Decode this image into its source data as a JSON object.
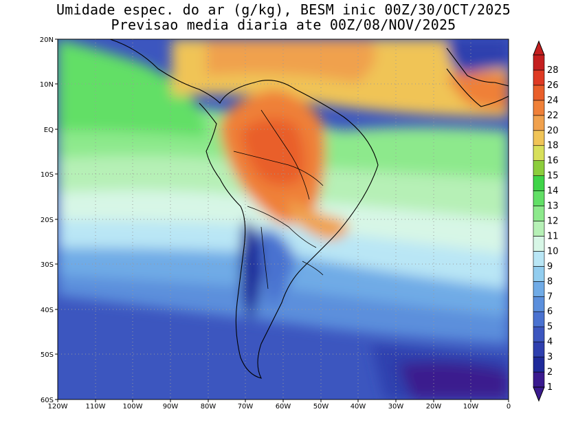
{
  "title": {
    "line1": "Umidade espec. do ar (g/kg), BESM inic 00Z/30/OCT/2025",
    "line2": "Previsao media diaria ate 00Z/08/NOV/2025"
  },
  "map": {
    "lat_labels": [
      "20N",
      "10N",
      "EQ",
      "10S",
      "20S",
      "30S",
      "40S",
      "50S",
      "60S"
    ],
    "lon_labels": [
      "120W",
      "110W",
      "100W",
      "90W",
      "80W",
      "70W",
      "60W",
      "50W",
      "40W",
      "30W",
      "20W",
      "10W",
      "0"
    ]
  },
  "colorbar": {
    "levels": [
      "1",
      "2",
      "3",
      "4",
      "5",
      "6",
      "7",
      "8",
      "9",
      "10",
      "11",
      "12",
      "13",
      "14",
      "15",
      "16",
      "18",
      "20",
      "22",
      "24",
      "26",
      "28"
    ],
    "colors": [
      "#3a1a8e",
      "#1f2a9a",
      "#2e3fae",
      "#3c56bf",
      "#4a72d0",
      "#5b8fdc",
      "#70abe6",
      "#92cdef",
      "#b9e6f5",
      "#d7f6e6",
      "#b6f0b6",
      "#8de98c",
      "#62df66",
      "#3fd448",
      "#8ccd3c",
      "#d7df5a",
      "#f0c457",
      "#f0a14d",
      "#ef8038",
      "#e95f2a",
      "#de3a23",
      "#c41f1f"
    ]
  }
}
